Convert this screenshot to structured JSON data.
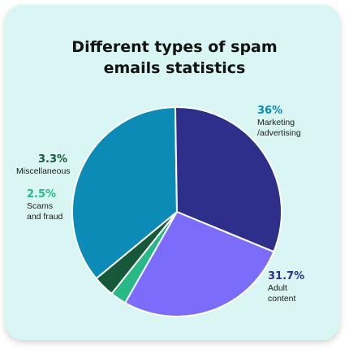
{
  "chart_data": {
    "type": "pie",
    "title_lines": [
      "Different types of spam",
      "emails statistics"
    ],
    "slices": [
      {
        "label_lines": [
          "Marketing",
          "/advertising"
        ],
        "value_label": "36%",
        "value": 36,
        "color": "#0b8bb5",
        "label_color": "#0b8bb5"
      },
      {
        "label_lines": [
          "Adult",
          "content"
        ],
        "value_label": "31.7%",
        "value": 31.7,
        "color": "#2d2f8a",
        "label_color": "#2d2f8a"
      },
      {
        "label_lines": [],
        "value_label": "",
        "value": 27.2,
        "color": "#7b6cfb",
        "label_color": "#7b6cfb"
      },
      {
        "label_lines": [
          "Scams",
          "and fraud"
        ],
        "value_label": "2.5%",
        "value": 2.5,
        "color": "#27b986",
        "label_color": "#27b986"
      },
      {
        "label_lines": [
          "Miscellaneous"
        ],
        "value_label": "3.3%",
        "value": 3.3,
        "color": "#17583a",
        "label_color": "#17583a"
      }
    ]
  }
}
